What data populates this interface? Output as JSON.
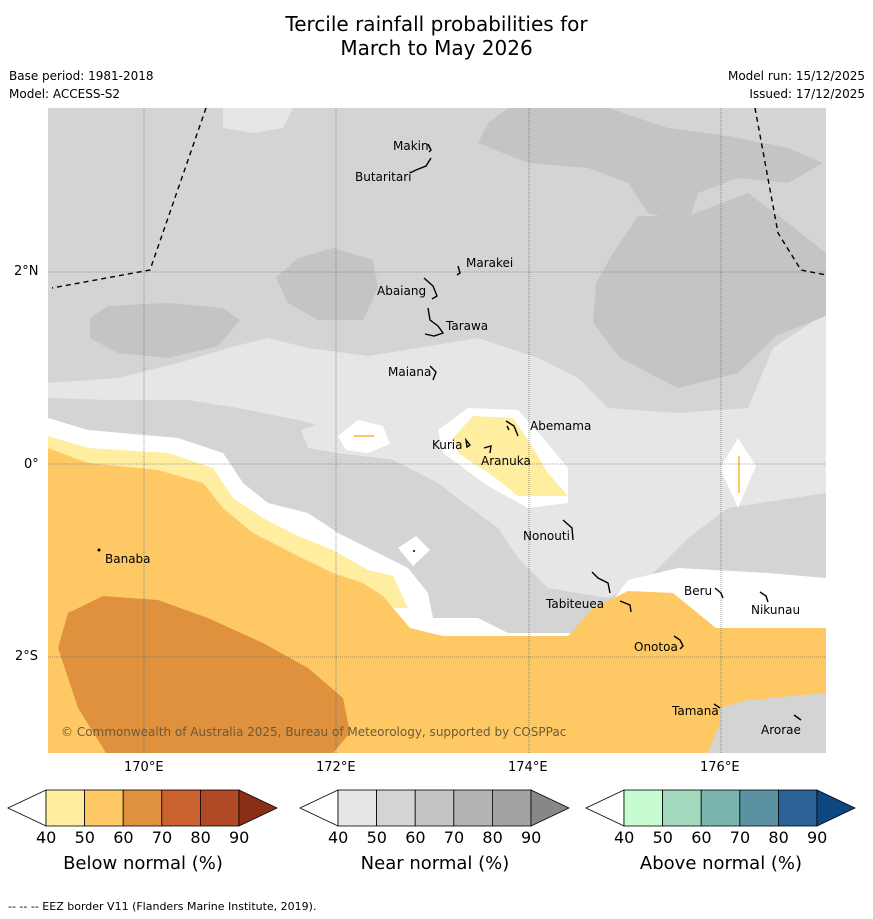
{
  "title_line1": "Tercile rainfall probabilities for",
  "title_line2": "March to May 2026",
  "meta": {
    "base_period": "Base period: 1981-2018",
    "model": "Model: ACCESS-S2",
    "model_run": "Model run: 15/12/2025",
    "issued": "Issued: 17/12/2025"
  },
  "axes": {
    "lat_labels": [
      "2°N",
      "0°",
      "2°S"
    ],
    "lon_labels": [
      "170°E",
      "172°E",
      "174°E",
      "176°E"
    ]
  },
  "places": [
    {
      "name": "Makin"
    },
    {
      "name": "Butaritari"
    },
    {
      "name": "Marakei"
    },
    {
      "name": "Abaiang"
    },
    {
      "name": "Tarawa"
    },
    {
      "name": "Maiana"
    },
    {
      "name": "Abemama"
    },
    {
      "name": "Kuria"
    },
    {
      "name": "Aranuka"
    },
    {
      "name": "Banaba"
    },
    {
      "name": "Nonouti"
    },
    {
      "name": "Tabiteuea"
    },
    {
      "name": "Beru"
    },
    {
      "name": "Nikunau"
    },
    {
      "name": "Onotoa"
    },
    {
      "name": "Tamana"
    },
    {
      "name": "Arorae"
    }
  ],
  "copyright": "© Commonwealth of Australia 2025, Bureau of Meteorology, supported by COSPPac",
  "colorbars": [
    {
      "title": "Below normal (%)",
      "ticks": [
        "40",
        "50",
        "60",
        "70",
        "80",
        "90"
      ],
      "colors": [
        "#ffffff",
        "#ffeda0",
        "#fec965",
        "#e0913e",
        "#c9622f",
        "#b04a26",
        "#8b2e16"
      ]
    },
    {
      "title": "Near normal (%)",
      "ticks": [
        "40",
        "50",
        "60",
        "70",
        "80",
        "90"
      ],
      "colors": [
        "#ffffff",
        "#e6e6e6",
        "#d4d4d4",
        "#c4c4c4",
        "#b4b4b4",
        "#a2a2a2",
        "#878787"
      ]
    },
    {
      "title": "Above normal (%)",
      "ticks": [
        "40",
        "50",
        "60",
        "70",
        "80",
        "90"
      ],
      "colors": [
        "#ffffff",
        "#c7fcd0",
        "#a3d9bd",
        "#7bb5b0",
        "#5a92a2",
        "#2d6296",
        "#0e4680"
      ]
    }
  ],
  "footer": "--  --  -- EEZ border V11 (Flanders Marine Institute, 2019)."
}
